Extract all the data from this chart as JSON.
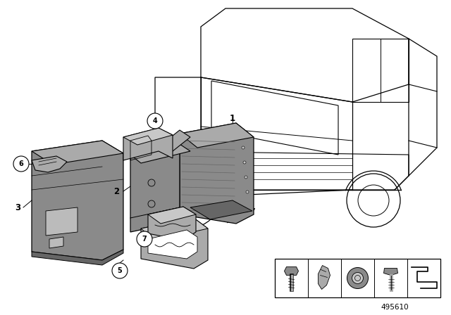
{
  "bg": "#ffffff",
  "black": "#000000",
  "gray1": "#8a8a8a",
  "gray2": "#aaaaaa",
  "gray3": "#c8c8c8",
  "gray4": "#666666",
  "gray5": "#bbbbbb",
  "part_number": "495610"
}
